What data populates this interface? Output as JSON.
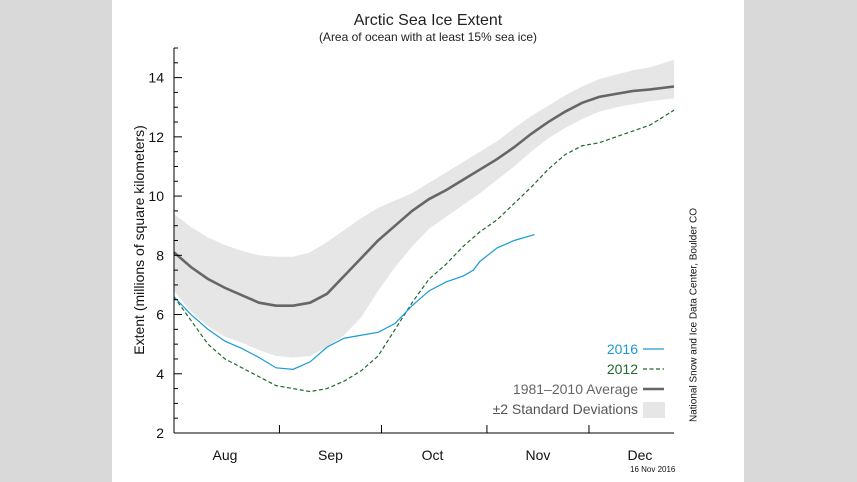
{
  "chart_data": {
    "type": "line",
    "title": "Arctic Sea Ice Extent",
    "subtitle": "(Area of ocean with at least 15% sea ice)",
    "xlabel": "",
    "ylabel": "Extent (millions of square kilometers)",
    "xlim": [
      0,
      147
    ],
    "ylim": [
      2,
      15
    ],
    "yticks": [
      2,
      4,
      6,
      8,
      10,
      12,
      14
    ],
    "month_labels": [
      {
        "label": "Aug",
        "x": 15
      },
      {
        "label": "Sep",
        "x": 46
      },
      {
        "label": "Oct",
        "x": 76
      },
      {
        "label": "Nov",
        "x": 107
      },
      {
        "label": "Dec",
        "x": 137
      }
    ],
    "month_ticks": [
      0,
      31,
      61,
      92,
      122
    ],
    "series": [
      {
        "name": "2016",
        "label": "2016",
        "style": "solid",
        "color": "#1a9ad9",
        "x": [
          0,
          5,
          10,
          15,
          20,
          25,
          30,
          35,
          40,
          45,
          50,
          55,
          60,
          65,
          70,
          75,
          80,
          85,
          88,
          90,
          95,
          100,
          106
        ],
        "y": [
          6.6,
          6.0,
          5.5,
          5.1,
          4.85,
          4.55,
          4.2,
          4.15,
          4.4,
          4.9,
          5.2,
          5.3,
          5.4,
          5.7,
          6.3,
          6.8,
          7.1,
          7.3,
          7.5,
          7.8,
          8.25,
          8.5,
          8.7
        ]
      },
      {
        "name": "2012",
        "label": "2012",
        "style": "dashed",
        "color": "#1f6b2a",
        "x": [
          0,
          5,
          10,
          15,
          20,
          25,
          30,
          35,
          40,
          45,
          50,
          55,
          60,
          65,
          70,
          75,
          80,
          85,
          90,
          95,
          100,
          105,
          110,
          115,
          120,
          125,
          130,
          135,
          140,
          147
        ],
        "y": [
          6.6,
          5.8,
          5.0,
          4.5,
          4.2,
          3.9,
          3.6,
          3.5,
          3.4,
          3.5,
          3.75,
          4.1,
          4.6,
          5.5,
          6.4,
          7.2,
          7.7,
          8.3,
          8.8,
          9.2,
          9.75,
          10.3,
          10.9,
          11.4,
          11.7,
          11.8,
          12.0,
          12.2,
          12.4,
          12.9
        ]
      },
      {
        "name": "1981-2010 Average",
        "label": "1981–2010 Average",
        "style": "solid",
        "color": "#666666",
        "x": [
          0,
          5,
          10,
          15,
          20,
          25,
          30,
          35,
          40,
          45,
          50,
          55,
          60,
          65,
          70,
          75,
          80,
          85,
          90,
          95,
          100,
          105,
          110,
          115,
          120,
          125,
          130,
          135,
          140,
          147
        ],
        "y": [
          8.1,
          7.6,
          7.2,
          6.9,
          6.65,
          6.4,
          6.3,
          6.3,
          6.4,
          6.7,
          7.3,
          7.9,
          8.5,
          9.0,
          9.5,
          9.9,
          10.2,
          10.55,
          10.9,
          11.25,
          11.65,
          12.1,
          12.5,
          12.85,
          13.15,
          13.35,
          13.45,
          13.55,
          13.6,
          13.7
        ]
      },
      {
        "name": "±2 Standard Deviations",
        "label": "±2 Standard Deviations",
        "style": "band",
        "color": "#e6e6e6",
        "x": [
          0,
          5,
          10,
          15,
          20,
          25,
          30,
          35,
          40,
          45,
          50,
          55,
          60,
          65,
          70,
          75,
          80,
          85,
          90,
          95,
          100,
          105,
          110,
          115,
          120,
          125,
          130,
          135,
          140,
          147
        ],
        "lower": [
          6.8,
          6.1,
          5.6,
          5.25,
          5.05,
          4.8,
          4.6,
          4.55,
          4.6,
          4.9,
          5.3,
          5.9,
          6.8,
          7.6,
          8.3,
          8.9,
          9.3,
          9.7,
          10.1,
          10.55,
          11.0,
          11.5,
          11.95,
          12.3,
          12.6,
          12.85,
          13.0,
          13.1,
          13.2,
          13.3
        ],
        "upper": [
          9.4,
          8.95,
          8.6,
          8.35,
          8.15,
          8.0,
          7.95,
          7.95,
          8.1,
          8.45,
          8.85,
          9.25,
          9.6,
          9.85,
          10.1,
          10.45,
          10.8,
          11.15,
          11.5,
          11.85,
          12.3,
          12.7,
          13.05,
          13.4,
          13.7,
          13.95,
          14.1,
          14.25,
          14.35,
          14.6
        ]
      }
    ],
    "legend_position": "bottom-right",
    "grid": false
  },
  "credit": "National Snow and Ice Data Center, Boulder CO",
  "date_stamp": "16 Nov 2016"
}
